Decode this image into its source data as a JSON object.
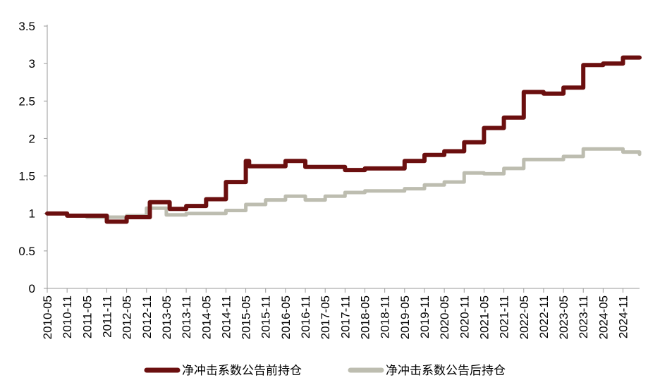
{
  "chart_data": {
    "type": "line",
    "title": "",
    "xlabel": "",
    "ylabel": "",
    "ylim": [
      0,
      3.5
    ],
    "y_ticks": [
      "0",
      "0.5",
      "1",
      "1.5",
      "2",
      "2.5",
      "3",
      "3.5"
    ],
    "x_ticks": [
      "2010-05",
      "2010-11",
      "2011-05",
      "2011-11",
      "2012-05",
      "2012-11",
      "2013-05",
      "2013-11",
      "2014-05",
      "2014-11",
      "2015-05",
      "2015-11",
      "2016-05",
      "2016-11",
      "2017-05",
      "2017-11",
      "2018-05",
      "2018-11",
      "2019-05",
      "2019-11",
      "2020-05",
      "2020-11",
      "2021-05",
      "2021-11",
      "2022-05",
      "2022-11",
      "2023-05",
      "2023-11",
      "2024-05",
      "2024-11"
    ],
    "x_range": [
      "2010-05",
      "2025-04"
    ],
    "grid": false,
    "legend_position": "bottom",
    "series": [
      {
        "name": "净冲击系数公告前持仓",
        "color": "#6b0f0f",
        "points": [
          [
            "2010-05",
            1.0
          ],
          [
            "2010-11",
            0.97
          ],
          [
            "2011-05",
            0.97
          ],
          [
            "2011-11",
            0.89
          ],
          [
            "2012-05",
            0.95
          ],
          [
            "2012-11",
            0.95
          ],
          [
            "2012-12",
            1.15
          ],
          [
            "2013-05",
            1.15
          ],
          [
            "2013-06",
            1.06
          ],
          [
            "2013-11",
            1.1
          ],
          [
            "2014-05",
            1.19
          ],
          [
            "2014-11",
            1.42
          ],
          [
            "2015-05",
            1.7
          ],
          [
            "2015-06",
            1.63
          ],
          [
            "2015-11",
            1.63
          ],
          [
            "2016-05",
            1.7
          ],
          [
            "2016-11",
            1.62
          ],
          [
            "2017-05",
            1.62
          ],
          [
            "2017-11",
            1.58
          ],
          [
            "2018-05",
            1.6
          ],
          [
            "2018-11",
            1.6
          ],
          [
            "2019-05",
            1.7
          ],
          [
            "2019-11",
            1.78
          ],
          [
            "2020-05",
            1.83
          ],
          [
            "2020-11",
            1.95
          ],
          [
            "2021-05",
            2.14
          ],
          [
            "2021-11",
            2.28
          ],
          [
            "2022-05",
            2.62
          ],
          [
            "2022-11",
            2.6
          ],
          [
            "2023-05",
            2.68
          ],
          [
            "2023-11",
            2.98
          ],
          [
            "2024-05",
            3.0
          ],
          [
            "2024-11",
            3.08
          ],
          [
            "2025-04",
            3.08
          ]
        ]
      },
      {
        "name": "净冲击系数公告后持仓",
        "color": "#bdbdb0",
        "points": [
          [
            "2010-05",
            1.0
          ],
          [
            "2010-11",
            0.97
          ],
          [
            "2011-05",
            0.95
          ],
          [
            "2011-11",
            0.95
          ],
          [
            "2012-05",
            0.97
          ],
          [
            "2012-11",
            1.07
          ],
          [
            "2013-05",
            0.98
          ],
          [
            "2013-11",
            1.0
          ],
          [
            "2014-05",
            1.0
          ],
          [
            "2014-11",
            1.04
          ],
          [
            "2015-05",
            1.12
          ],
          [
            "2015-11",
            1.18
          ],
          [
            "2016-05",
            1.23
          ],
          [
            "2016-11",
            1.18
          ],
          [
            "2017-05",
            1.23
          ],
          [
            "2017-11",
            1.28
          ],
          [
            "2018-05",
            1.3
          ],
          [
            "2018-11",
            1.3
          ],
          [
            "2019-05",
            1.33
          ],
          [
            "2019-11",
            1.38
          ],
          [
            "2020-05",
            1.42
          ],
          [
            "2020-11",
            1.54
          ],
          [
            "2021-05",
            1.53
          ],
          [
            "2021-11",
            1.6
          ],
          [
            "2022-05",
            1.72
          ],
          [
            "2022-11",
            1.72
          ],
          [
            "2023-05",
            1.76
          ],
          [
            "2023-11",
            1.86
          ],
          [
            "2024-05",
            1.86
          ],
          [
            "2024-11",
            1.82
          ],
          [
            "2025-04",
            1.79
          ]
        ]
      }
    ]
  }
}
